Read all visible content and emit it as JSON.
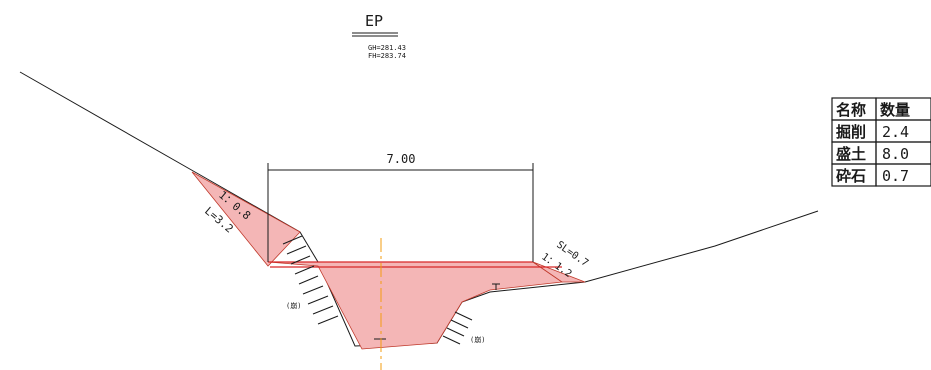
{
  "header": {
    "title": "EP",
    "gh": "GH=281.43",
    "fh": "FH=283.74"
  },
  "dimensions": {
    "width": "7.00",
    "left_slope": "1：0.8",
    "left_length": "L=3.2",
    "right_sl": "SL=0.7",
    "right_slope": "1：1.2"
  },
  "notes": {
    "left": "(崩)",
    "right": "(崩)"
  },
  "quantity_table": {
    "headers": [
      "名称",
      "数量"
    ],
    "rows": [
      {
        "name": "掘削",
        "value": "2.4"
      },
      {
        "name": "盛土",
        "value": "8.0"
      },
      {
        "name": "砕石",
        "value": "0.7"
      }
    ]
  },
  "colors": {
    "fill": "#f4b6b6",
    "fill_stroke": "#c0392b",
    "centerline": "#f39c12",
    "line": "#1a1a1a"
  }
}
